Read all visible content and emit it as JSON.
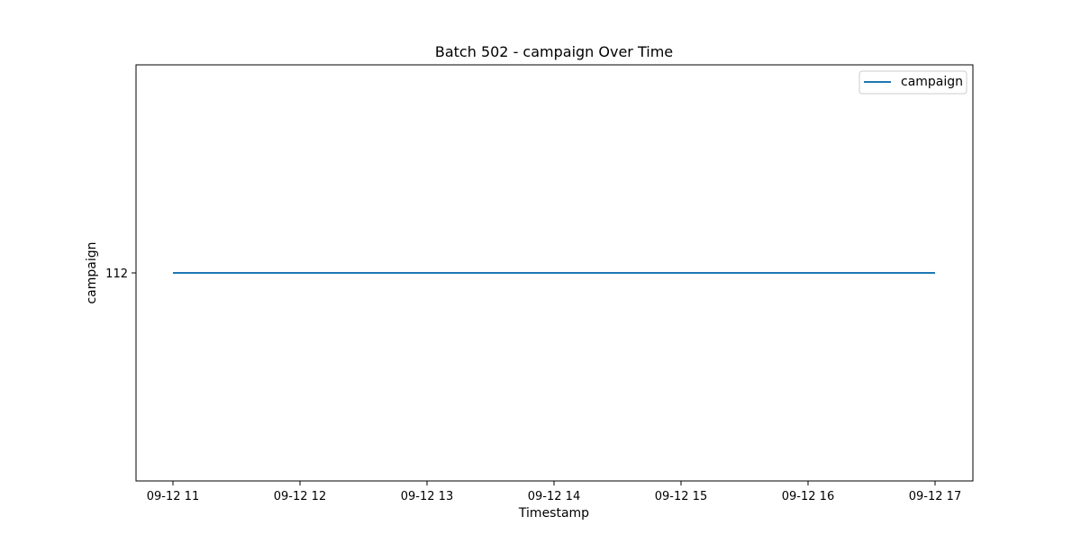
{
  "chart_data": {
    "type": "line",
    "title": "Batch 502 - campaign Over Time",
    "xlabel": "Timestamp",
    "ylabel": "campaign",
    "x_ticks": [
      "09-12 11",
      "09-12 12",
      "09-12 13",
      "09-12 14",
      "09-12 15",
      "09-12 16",
      "09-12 17"
    ],
    "y_ticks": [
      "112"
    ],
    "ylim": [
      111.9,
      112.1
    ],
    "grid": false,
    "legend_position": "top-right",
    "series": [
      {
        "name": "campaign",
        "color": "#1f77b4",
        "x": [
          "09-12 11",
          "09-12 17"
        ],
        "values": [
          112,
          112
        ]
      }
    ]
  }
}
